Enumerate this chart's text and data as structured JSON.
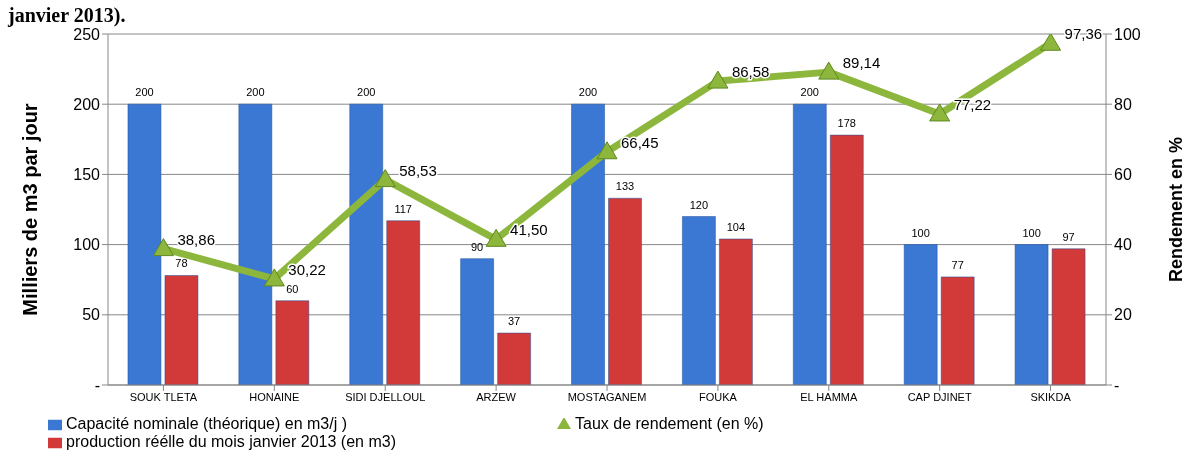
{
  "chart_data": {
    "type": "bar",
    "title": "janvier 2013).",
    "ylabel": "Milliers de m3 par jour",
    "y2label": "Rendement en %",
    "categories": [
      "SOUK TLETA",
      "HONAINE",
      "SIDI DJELLOUL",
      "ARZEW",
      "MOSTAGANEM",
      "FOUKA",
      "EL HAMMA",
      "CAP DJINET",
      "SKIKDA"
    ],
    "series": [
      {
        "name": "Capacité nominale (théorique) en m3/j   )",
        "color": "#3b78d4",
        "values": [
          200,
          200,
          200,
          90,
          200,
          120,
          200,
          100,
          100
        ],
        "value_labels": [
          "200",
          "200",
          "200",
          "90",
          "200",
          "120",
          "200",
          "100",
          "100"
        ]
      },
      {
        "name": "production réélle  du mois janvier 2013 (en m3)",
        "color": "#d23a3a",
        "values": [
          78,
          60,
          117,
          37,
          133,
          104,
          178,
          77,
          97
        ],
        "value_labels": [
          "78",
          "60",
          "117",
          "37",
          "133",
          "104",
          "178",
          "77",
          "97"
        ]
      },
      {
        "name": "Taux de rendement (en %)",
        "type": "line",
        "axis": "y2",
        "color": "#8cb63c",
        "marker": "triangle",
        "values": [
          38.86,
          30.22,
          58.53,
          41.5,
          66.45,
          86.58,
          89.14,
          77.22,
          97.36
        ],
        "value_labels": [
          "38,86",
          "30,22",
          "58,53",
          "41,50",
          "66,45",
          "86,58",
          "89,14",
          "77,22",
          "97,36"
        ]
      }
    ],
    "ylim": [
      0,
      250
    ],
    "yticks": [
      {
        "value": 0,
        "label": "-"
      },
      50,
      100,
      150,
      200,
      250
    ],
    "y2lim": [
      0,
      100
    ],
    "y2ticks": [
      {
        "value": 0,
        "label": "-"
      },
      20,
      40,
      60,
      80,
      100
    ],
    "grid": "y",
    "legend": "bottom"
  }
}
